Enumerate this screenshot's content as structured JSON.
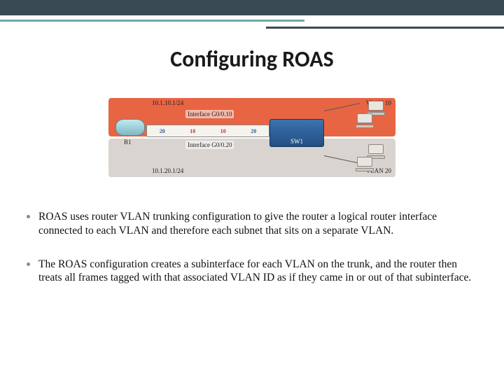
{
  "slide": {
    "title": "Configuring ROAS",
    "top_bar_color": "#3a4a54",
    "accent_line1_color": "#6fa8a8",
    "accent_line2_color": "#3a4a54",
    "background_color": "#ffffff"
  },
  "diagram": {
    "vlan10": {
      "region_color": "#e76543",
      "subnet": "10.1.10.1/24",
      "interface_label": "Interface G0/0.10",
      "vlan_label": "VLAN 10"
    },
    "vlan20": {
      "region_color": "#d9d4cf",
      "subnet": "10.1.20.1/24",
      "interface_label": "Interface G0/0.20",
      "vlan_label": "VLAN 20"
    },
    "router_label": "B1",
    "switch_label": "SW1",
    "trunk_tags": {
      "t1": "20",
      "t2": "10",
      "t3": "10",
      "t4": "20"
    }
  },
  "bullets": [
    "ROAS uses router VLAN trunking configuration to give the router a logical router interface connected to each VLAN and therefore each subnet that sits on a separate VLAN.",
    "The ROAS configuration creates a subinterface for each VLAN on the trunk, and the router then treats all frames tagged with that associated VLAN ID as if they came in or out of that subinterface."
  ]
}
